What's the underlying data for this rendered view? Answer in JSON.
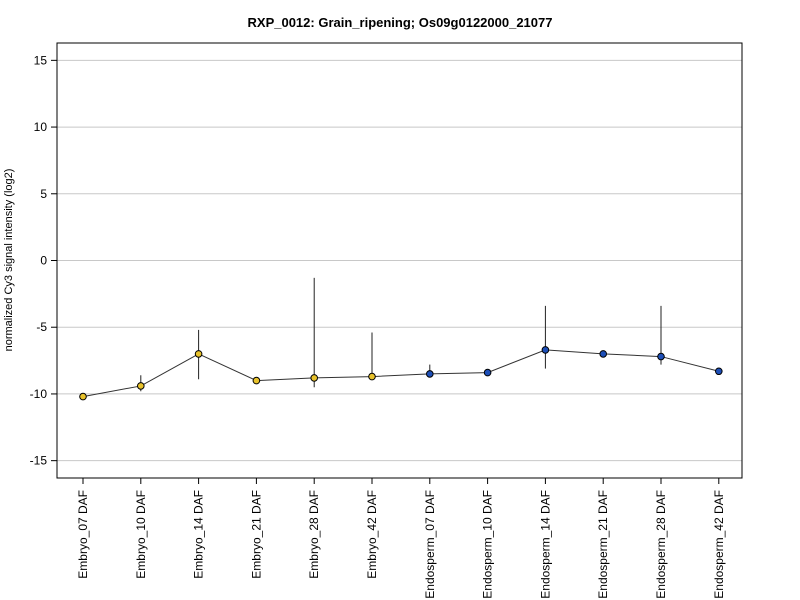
{
  "chart_data": {
    "type": "line",
    "title": "RXP_0012: Grain_ripening; Os09g0122000_21077",
    "xlabel": "",
    "ylabel": "normalized Cy3 signal intensity (log2)",
    "ylim": [
      -16.3,
      16.3
    ],
    "yticks": [
      -15,
      -10,
      -5,
      0,
      5,
      10,
      15
    ],
    "grid": true,
    "categories": [
      "Embryo_07 DAF",
      "Embryo_10 DAF",
      "Embryo_14 DAF",
      "Embryo_21 DAF",
      "Embryo_28 DAF",
      "Embryo_42 DAF",
      "Endosperm_07 DAF",
      "Endosperm_10 DAF",
      "Endosperm_14 DAF",
      "Endosperm_21 DAF",
      "Endosperm_28 DAF",
      "Endosperm_42 DAF"
    ],
    "values": [
      -10.2,
      -9.4,
      -7.0,
      -9.0,
      -8.8,
      -8.7,
      -8.5,
      -8.4,
      -6.7,
      -7.0,
      -7.2,
      -8.3
    ],
    "error_high": [
      -10.1,
      -8.6,
      -5.2,
      -9.0,
      -1.3,
      -5.4,
      -7.8,
      -8.3,
      -3.4,
      -7.0,
      -3.4,
      -8.3
    ],
    "error_low": [
      -10.2,
      -9.8,
      -8.9,
      -9.0,
      -9.5,
      -8.7,
      -8.5,
      -8.5,
      -8.1,
      -7.0,
      -7.8,
      -8.3
    ],
    "point_colors": [
      "#e8c22b",
      "#e8c22b",
      "#e8c22b",
      "#e8c22b",
      "#e8c22b",
      "#e8c22b",
      "#1d4fb8",
      "#1d4fb8",
      "#1d4fb8",
      "#1d4fb8",
      "#1d4fb8",
      "#1d4fb8"
    ],
    "line_color": "#333333",
    "grid_color": "#c8c8c8"
  }
}
